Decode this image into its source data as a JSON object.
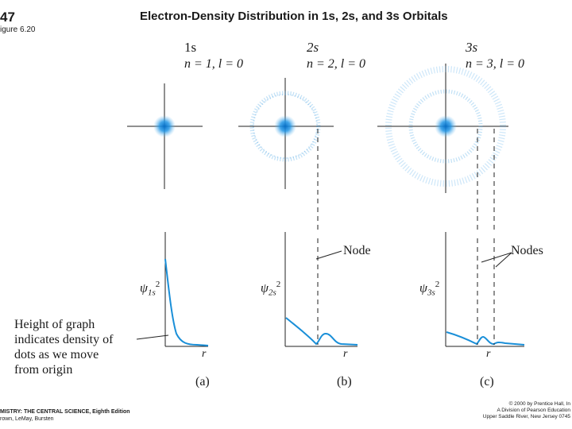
{
  "header": {
    "page_number": "47",
    "figure_label": "igure 6.20",
    "title": "Electron-Density Distribution in 1s, 2s, and 3s Orbitals"
  },
  "orbitals": [
    {
      "name": "1s",
      "quantum": "n = 1, l = 0",
      "psi_label": "ψ",
      "psi_sub": "1s",
      "panel": "(a)",
      "r_label": "r"
    },
    {
      "name": "2s",
      "quantum": "n = 2, l = 0",
      "psi_label": "ψ",
      "psi_sub": "2s",
      "panel": "(b)",
      "r_label": "r"
    },
    {
      "name": "3s",
      "quantum": "n = 3, l = 0",
      "psi_label": "ψ",
      "psi_sub": "3s",
      "panel": "(c)",
      "r_label": "r"
    }
  ],
  "annotations": {
    "node": "Node",
    "nodes": "Nodes",
    "height_note": [
      "Height of graph",
      "indicates density of",
      "dots as we move",
      "from origin"
    ]
  },
  "footer": {
    "left_line1": "MISTRY: THE CENTRAL SCIENCE, Eighth Edition",
    "left_line2": "rown, LeMay, Bursten",
    "right_line1": "© 2000 by Prentice Hall, In",
    "right_line2": "A Division of Pearson Education",
    "right_line3": "Upper Saddle River, New Jersey 0745"
  },
  "colors": {
    "dots": "#1a8fd8",
    "curve": "#1a8fd8",
    "axis": "#222222"
  }
}
